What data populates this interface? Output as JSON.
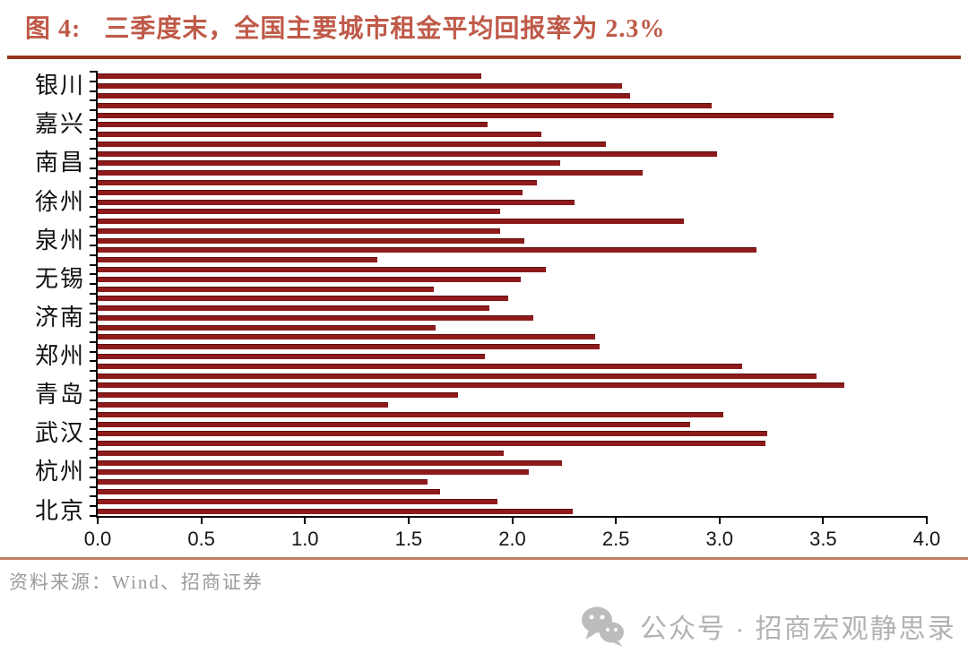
{
  "title": {
    "prefix": "图 4:",
    "text": "三季度末，全国主要城市租金平均回报率为 2.3%"
  },
  "chart_data": {
    "type": "bar",
    "orientation": "horizontal",
    "title": "三季度末，全国主要城市租金平均回报率为 2.3%",
    "xlabel": "",
    "ylabel": "",
    "xlim": [
      0.0,
      4.0
    ],
    "x_ticks": [
      "0.0",
      "0.5",
      "1.0",
      "1.5",
      "2.0",
      "2.5",
      "3.0",
      "3.5",
      "4.0"
    ],
    "grid": false,
    "legend": "none",
    "bar_color": "#8e1b1b",
    "visible_city_labels": [
      "银川",
      "嘉兴",
      "南昌",
      "徐州",
      "泉州",
      "无锡",
      "济南",
      "郑州",
      "青岛",
      "武汉",
      "杭州",
      "北京"
    ],
    "bars": [
      {
        "label": "",
        "value": 1.85
      },
      {
        "label": "银川",
        "value": 2.53
      },
      {
        "label": "",
        "value": 2.57
      },
      {
        "label": "",
        "value": 2.96
      },
      {
        "label": "",
        "value": 3.55
      },
      {
        "label": "嘉兴",
        "value": 1.88
      },
      {
        "label": "",
        "value": 2.14
      },
      {
        "label": "",
        "value": 2.45
      },
      {
        "label": "",
        "value": 2.99
      },
      {
        "label": "南昌",
        "value": 2.23
      },
      {
        "label": "",
        "value": 2.63
      },
      {
        "label": "",
        "value": 2.12
      },
      {
        "label": "",
        "value": 2.05
      },
      {
        "label": "徐州",
        "value": 2.3
      },
      {
        "label": "",
        "value": 1.94
      },
      {
        "label": "",
        "value": 2.83
      },
      {
        "label": "",
        "value": 1.94
      },
      {
        "label": "泉州",
        "value": 2.06
      },
      {
        "label": "",
        "value": 3.18
      },
      {
        "label": "",
        "value": 1.35
      },
      {
        "label": "",
        "value": 2.16
      },
      {
        "label": "无锡",
        "value": 2.04
      },
      {
        "label": "",
        "value": 1.62
      },
      {
        "label": "",
        "value": 1.98
      },
      {
        "label": "",
        "value": 1.89
      },
      {
        "label": "济南",
        "value": 2.1
      },
      {
        "label": "",
        "value": 1.63
      },
      {
        "label": "",
        "value": 2.4
      },
      {
        "label": "",
        "value": 2.42
      },
      {
        "label": "郑州",
        "value": 1.87
      },
      {
        "label": "",
        "value": 3.11
      },
      {
        "label": "",
        "value": 3.47
      },
      {
        "label": "",
        "value": 3.6
      },
      {
        "label": "青岛",
        "value": 1.74
      },
      {
        "label": "",
        "value": 1.4
      },
      {
        "label": "",
        "value": 3.02
      },
      {
        "label": "",
        "value": 2.86
      },
      {
        "label": "武汉",
        "value": 3.23
      },
      {
        "label": "",
        "value": 3.22
      },
      {
        "label": "",
        "value": 1.96
      },
      {
        "label": "",
        "value": 2.24
      },
      {
        "label": "杭州",
        "value": 2.08
      },
      {
        "label": "",
        "value": 1.59
      },
      {
        "label": "",
        "value": 1.65
      },
      {
        "label": "",
        "value": 1.93
      },
      {
        "label": "北京",
        "value": 2.29
      }
    ]
  },
  "footer": {
    "source": "资料来源：Wind、招商证券",
    "badge_text": "公众号 · 招商宏观静思录"
  }
}
